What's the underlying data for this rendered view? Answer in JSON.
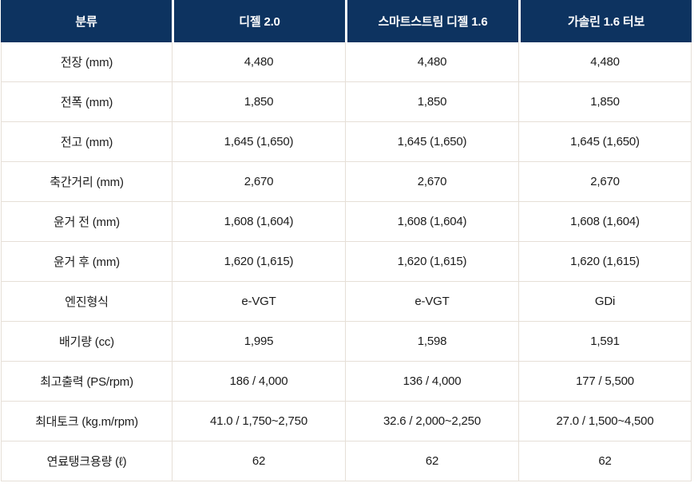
{
  "table": {
    "columns": [
      "분류",
      "디젤 2.0",
      "스마트스트림 디젤 1.6",
      "가솔린 1.6 터보"
    ],
    "rows": [
      {
        "label": "전장 (mm)",
        "values": [
          "4,480",
          "4,480",
          "4,480"
        ]
      },
      {
        "label": "전폭 (mm)",
        "values": [
          "1,850",
          "1,850",
          "1,850"
        ]
      },
      {
        "label": "전고 (mm)",
        "values": [
          "1,645 (1,650)",
          "1,645 (1,650)",
          "1,645 (1,650)"
        ]
      },
      {
        "label": "축간거리 (mm)",
        "values": [
          "2,670",
          "2,670",
          "2,670"
        ]
      },
      {
        "label": "윤거 전 (mm)",
        "values": [
          "1,608 (1,604)",
          "1,608 (1,604)",
          "1,608 (1,604)"
        ]
      },
      {
        "label": "윤거 후 (mm)",
        "values": [
          "1,620 (1,615)",
          "1,620 (1,615)",
          "1,620 (1,615)"
        ]
      },
      {
        "label": "엔진형식",
        "values": [
          "e-VGT",
          "e-VGT",
          "GDi"
        ]
      },
      {
        "label": "배기량 (cc)",
        "values": [
          "1,995",
          "1,598",
          "1,591"
        ]
      },
      {
        "label": "최고출력 (PS/rpm)",
        "values": [
          "186 / 4,000",
          "136 / 4,000",
          "177 / 5,500"
        ]
      },
      {
        "label": "최대토크 (kg.m/rpm)",
        "values": [
          "41.0 / 1,750~2,750",
          "32.6 / 2,000~2,250",
          "27.0 / 1,500~4,500"
        ]
      },
      {
        "label": "연료탱크용량 (ℓ)",
        "values": [
          "62",
          "62",
          "62"
        ]
      }
    ],
    "colors": {
      "header_bg": "#0d3360",
      "header_text": "#ffffff",
      "border": "#e6dfd7",
      "body_text": "#1c1c1c"
    }
  }
}
